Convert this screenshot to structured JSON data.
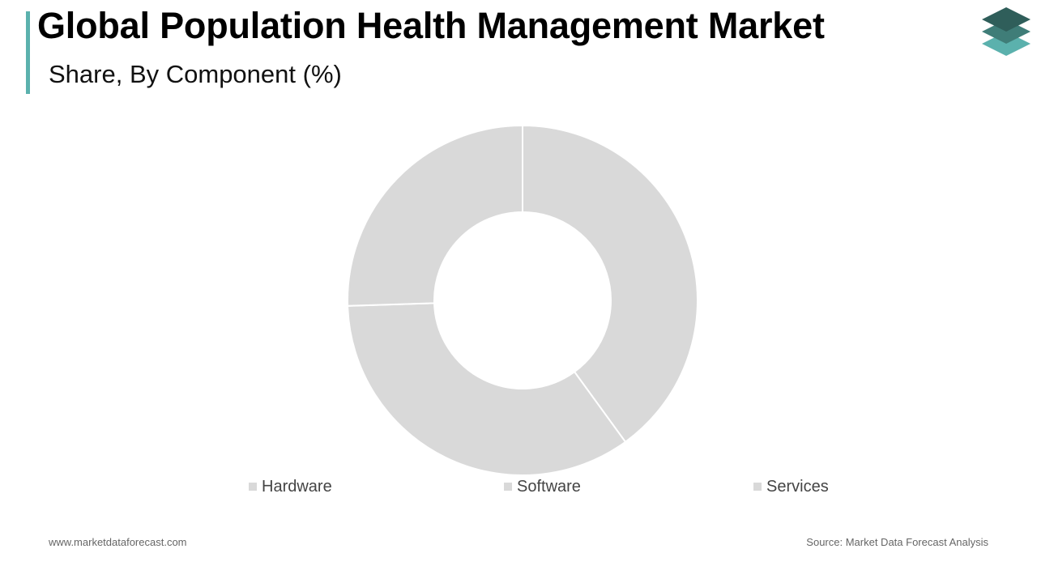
{
  "header": {
    "title": "Global Population Health Management Market",
    "subtitle": "Share, By Component (%)",
    "accent_color": "#5bb1ad",
    "logo_icon": "stacked-layers-icon"
  },
  "chart_data": {
    "type": "pie",
    "style": "donut",
    "categories": [
      "Hardware",
      "Software",
      "Services"
    ],
    "values": [
      40.0,
      34.5,
      25.5
    ],
    "colors": [
      "#d9d9d9",
      "#d9d9d9",
      "#d9d9d9"
    ],
    "legend": "bottom",
    "title": "",
    "start_angle_deg": 0,
    "direction": "clockwise"
  },
  "legend": {
    "items": [
      "Hardware",
      "Software",
      "Services"
    ]
  },
  "footer": {
    "website": "www.marketdataforecast.com",
    "source": "Source: Market Data Forecast Analysis"
  }
}
